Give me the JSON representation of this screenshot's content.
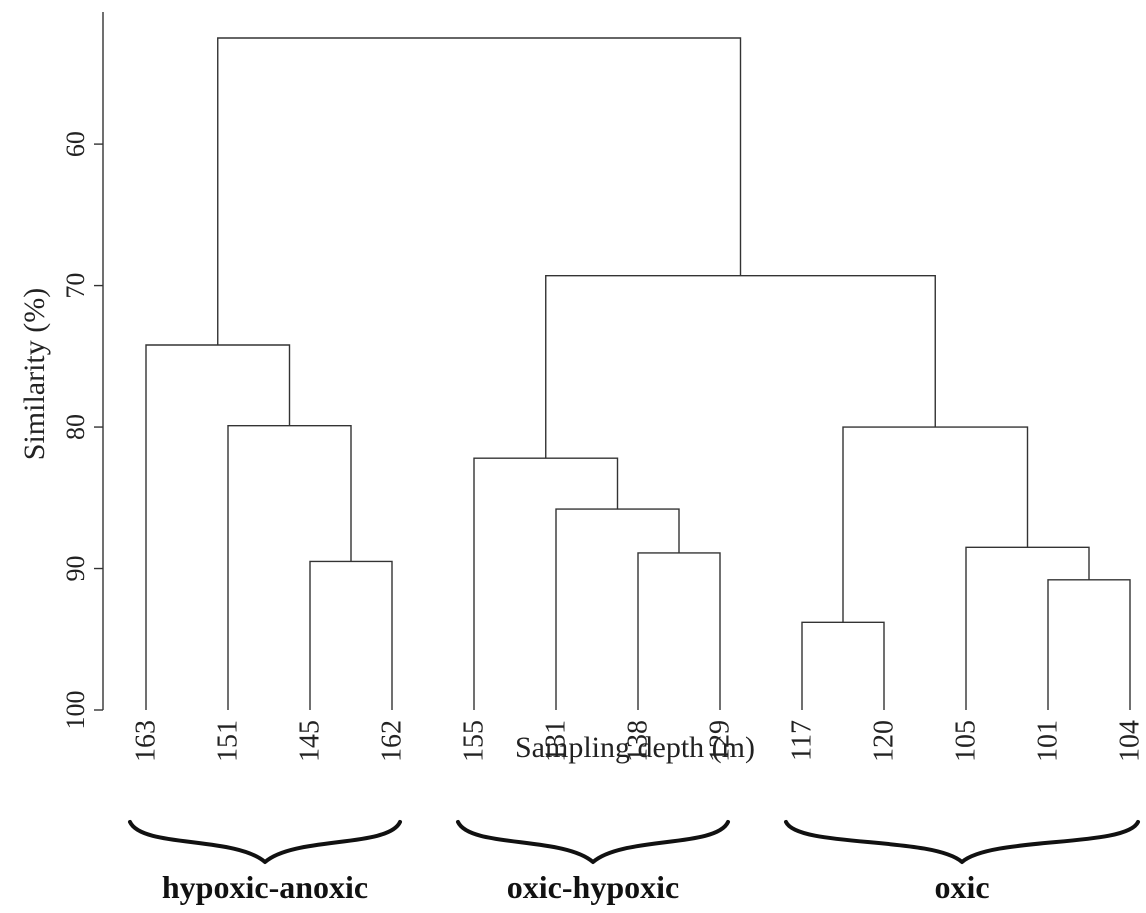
{
  "chart_data": {
    "type": "dendrogram",
    "xlabel": "Sampling depth (m)",
    "ylabel": "Similarity (%)",
    "ylim": [
      52.5,
      100
    ],
    "yticks": [
      60,
      70,
      80,
      90,
      100
    ],
    "leaves": [
      "163",
      "151",
      "145",
      "162",
      "155",
      "131",
      "138",
      "129",
      "117",
      "120",
      "105",
      "101",
      "104"
    ],
    "merges": [
      {
        "left": "145",
        "right": "162",
        "similarity": 89.5
      },
      {
        "left": "151",
        "right": "145+162",
        "similarity": 79.9
      },
      {
        "left": "163",
        "right": "151+145+162",
        "similarity": 74.2
      },
      {
        "left": "138",
        "right": "129",
        "similarity": 88.9
      },
      {
        "left": "131",
        "right": "138+129",
        "similarity": 85.8
      },
      {
        "left": "155",
        "right": "131+138+129",
        "similarity": 82.2
      },
      {
        "left": "117",
        "right": "120",
        "similarity": 93.8
      },
      {
        "left": "101",
        "right": "104",
        "similarity": 90.8
      },
      {
        "left": "105",
        "right": "101+104",
        "similarity": 88.5
      },
      {
        "left": "117+120",
        "right": "105+101+104",
        "similarity": 80.0
      },
      {
        "left": "155-129 cluster",
        "right": "117-104 cluster",
        "similarity": 69.3
      },
      {
        "left": "163-162 cluster",
        "right": "155-104 cluster",
        "similarity": 52.5
      }
    ],
    "groups": [
      {
        "label": "hypoxic-anoxic",
        "leaves": [
          "163",
          "151",
          "145",
          "162"
        ]
      },
      {
        "label": "oxic-hypoxic",
        "leaves": [
          "155",
          "131",
          "138",
          "129"
        ]
      },
      {
        "label": "oxic",
        "leaves": [
          "117",
          "120",
          "105",
          "101",
          "104"
        ]
      }
    ],
    "grid": false,
    "legend": "none"
  }
}
